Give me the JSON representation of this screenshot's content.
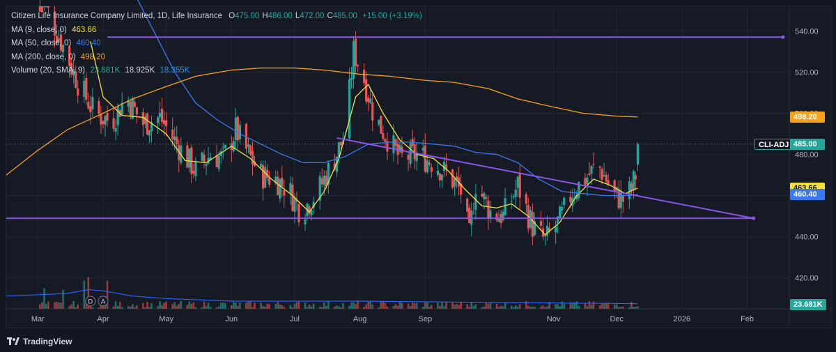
{
  "header": {
    "symbol_name": "Citizen Life Insurance Company Limited, 1D, Life Insurance",
    "ohlc": [
      {
        "key": "O",
        "value": "475.00"
      },
      {
        "key": "H",
        "value": "486.00"
      },
      {
        "key": "L",
        "value": "472.00"
      },
      {
        "key": "C",
        "value": "485.00"
      }
    ],
    "change": "+15.00 (+3.19%)"
  },
  "indicators": [
    {
      "label": "MA (9, close, 0)",
      "value": "463.66",
      "color": "#f5e13b"
    },
    {
      "label": "MA (50, close, 0)",
      "value": "460.40",
      "color": "#3a78f2"
    },
    {
      "label": "MA (200, close, 0)",
      "value": "498.20",
      "color": "#f7a21b"
    }
  ],
  "volume_indicator": {
    "label": "Volume (20, SMA, 9)",
    "values": [
      "23.681K",
      "18.925K",
      "18.355K"
    ],
    "colors": [
      "#26a69a",
      "#d1d4dc",
      "#2196f3"
    ]
  },
  "price_tags": [
    {
      "label": "CLI-ADJ",
      "value": "485.00",
      "price": 485,
      "color": "#26a69a"
    },
    {
      "label": "",
      "value": "498.20",
      "price": 498.2,
      "color": "#f7a21b"
    },
    {
      "label": "",
      "value": "463.66",
      "price": 463.66,
      "color": "#f5e13b"
    },
    {
      "label": "",
      "value": "460.40",
      "price": 460.4,
      "color": "#3a78f2"
    }
  ],
  "volume_tag": {
    "value": "23.681K",
    "color": "#26a69a"
  },
  "event_markers": [
    {
      "letter": "D",
      "date": "2025-03-26"
    },
    {
      "letter": "A",
      "date": "2025-04-01"
    }
  ],
  "branding": {
    "name": "TradingView"
  },
  "colors": {
    "up": "#26a69a",
    "down": "#ef5350",
    "trendline": "#8c54e6",
    "background": "#161a25"
  },
  "chart_data": {
    "type": "candlestick",
    "title": "Citizen Life Insurance Company Limited, 1D, Life Insurance",
    "xlabel": "",
    "ylabel": "",
    "ylim": [
      405,
      552
    ],
    "y_ticks": [
      420,
      440,
      460,
      480,
      500,
      520,
      540
    ],
    "y_tick_labels": [
      "420.00",
      "440.00",
      "460.00",
      "480.00",
      "500.00",
      "520.00",
      "540.00"
    ],
    "x_range": [
      "2025-02-14",
      "2026-02-21"
    ],
    "x_ticks": [
      {
        "label": "Mar",
        "date": "2025-03-01"
      },
      {
        "label": "Apr",
        "date": "2025-04-01"
      },
      {
        "label": "May",
        "date": "2025-05-01"
      },
      {
        "label": "Jun",
        "date": "2025-06-01"
      },
      {
        "label": "Jul",
        "date": "2025-07-01"
      },
      {
        "label": "Aug",
        "date": "2025-08-01"
      },
      {
        "label": "Sep",
        "date": "2025-09-01"
      },
      {
        "label": "Nov",
        "date": "2025-11-01"
      },
      {
        "label": "Dec",
        "date": "2025-12-01"
      },
      {
        "label": "2026",
        "date": "2026-01-01"
      },
      {
        "label": "Feb",
        "date": "2026-02-01"
      }
    ],
    "grid": true,
    "price_anchor_path": [
      [
        "2025-03-01",
        560
      ],
      [
        "2025-03-10",
        540
      ],
      [
        "2025-03-20",
        515
      ],
      [
        "2025-03-28",
        500
      ],
      [
        "2025-04-05",
        496
      ],
      [
        "2025-04-12",
        508
      ],
      [
        "2025-04-20",
        495
      ],
      [
        "2025-04-28",
        498
      ],
      [
        "2025-05-06",
        485
      ],
      [
        "2025-05-15",
        472
      ],
      [
        "2025-05-22",
        480
      ],
      [
        "2025-05-28",
        478
      ],
      [
        "2025-06-03",
        492
      ],
      [
        "2025-06-08",
        482
      ],
      [
        "2025-06-15",
        470
      ],
      [
        "2025-06-22",
        468
      ],
      [
        "2025-06-28",
        463
      ],
      [
        "2025-07-04",
        452
      ],
      [
        "2025-07-12",
        462
      ],
      [
        "2025-07-20",
        478
      ],
      [
        "2025-07-25",
        490
      ],
      [
        "2025-07-29",
        530
      ],
      [
        "2025-08-02",
        520
      ],
      [
        "2025-08-08",
        498
      ],
      [
        "2025-08-14",
        488
      ],
      [
        "2025-08-20",
        478
      ],
      [
        "2025-08-28",
        480
      ],
      [
        "2025-09-05",
        476
      ],
      [
        "2025-09-12",
        470
      ],
      [
        "2025-09-18",
        462
      ],
      [
        "2025-09-22",
        440
      ],
      [
        "2025-09-25",
        466
      ],
      [
        "2025-10-02",
        452
      ],
      [
        "2025-10-08",
        450
      ],
      [
        "2025-10-15",
        465
      ],
      [
        "2025-10-22",
        445
      ],
      [
        "2025-10-28",
        438
      ],
      [
        "2025-11-04",
        448
      ],
      [
        "2025-11-10",
        462
      ],
      [
        "2025-11-16",
        468
      ],
      [
        "2025-11-22",
        475
      ],
      [
        "2025-11-26",
        468
      ],
      [
        "2025-11-30",
        460
      ],
      [
        "2025-12-04",
        458
      ],
      [
        "2025-12-08",
        463
      ],
      [
        "2025-12-10",
        470
      ],
      [
        "2025-12-11",
        485
      ]
    ],
    "last_bar": {
      "open": 475.0,
      "high": 486.0,
      "low": 472.0,
      "close": 485.0
    },
    "moving_averages": [
      {
        "name": "MA (9, close, 0)",
        "color": "#f5e13b",
        "last": 463.66,
        "points": [
          [
            "2025-03-26",
            535
          ],
          [
            "2025-04-01",
            508
          ],
          [
            "2025-04-10",
            499
          ],
          [
            "2025-04-20",
            498
          ],
          [
            "2025-05-01",
            490
          ],
          [
            "2025-05-10",
            477
          ],
          [
            "2025-05-20",
            476
          ],
          [
            "2025-06-01",
            484
          ],
          [
            "2025-06-10",
            478
          ],
          [
            "2025-06-20",
            468
          ],
          [
            "2025-06-30",
            460
          ],
          [
            "2025-07-08",
            452
          ],
          [
            "2025-07-15",
            462
          ],
          [
            "2025-07-22",
            478
          ],
          [
            "2025-07-30",
            508
          ],
          [
            "2025-08-05",
            514
          ],
          [
            "2025-08-12",
            500
          ],
          [
            "2025-08-20",
            487
          ],
          [
            "2025-08-28",
            480
          ],
          [
            "2025-09-05",
            478
          ],
          [
            "2025-09-12",
            472
          ],
          [
            "2025-09-20",
            463
          ],
          [
            "2025-09-28",
            455
          ],
          [
            "2025-10-05",
            454
          ],
          [
            "2025-10-12",
            456
          ],
          [
            "2025-10-20",
            450
          ],
          [
            "2025-10-28",
            441
          ],
          [
            "2025-11-04",
            447
          ],
          [
            "2025-11-12",
            460
          ],
          [
            "2025-11-20",
            468
          ],
          [
            "2025-11-28",
            465
          ],
          [
            "2025-12-05",
            461
          ],
          [
            "2025-12-11",
            463.66
          ]
        ]
      },
      {
        "name": "MA (50, close, 0)",
        "color": "#3a78f2",
        "last": 460.4,
        "points": [
          [
            "2025-04-15",
            560
          ],
          [
            "2025-04-25",
            540
          ],
          [
            "2025-05-05",
            520
          ],
          [
            "2025-05-15",
            505
          ],
          [
            "2025-05-25",
            497
          ],
          [
            "2025-06-05",
            490
          ],
          [
            "2025-06-15",
            485
          ],
          [
            "2025-06-25",
            480
          ],
          [
            "2025-07-05",
            476
          ],
          [
            "2025-07-15",
            476
          ],
          [
            "2025-07-25",
            479
          ],
          [
            "2025-08-05",
            485
          ],
          [
            "2025-08-15",
            486
          ],
          [
            "2025-08-25",
            486
          ],
          [
            "2025-09-05",
            485
          ],
          [
            "2025-09-15",
            484
          ],
          [
            "2025-09-25",
            481
          ],
          [
            "2025-10-05",
            480
          ],
          [
            "2025-10-15",
            476
          ],
          [
            "2025-10-25",
            468
          ],
          [
            "2025-11-05",
            462
          ],
          [
            "2025-11-15",
            461
          ],
          [
            "2025-11-25",
            460
          ],
          [
            "2025-12-05",
            460
          ],
          [
            "2025-12-11",
            460.4
          ]
        ]
      },
      {
        "name": "MA (200, close, 0)",
        "color": "#f7a21b",
        "last": 498.2,
        "points": [
          [
            "2025-02-14",
            470
          ],
          [
            "2025-03-01",
            482
          ],
          [
            "2025-03-15",
            492
          ],
          [
            "2025-04-01",
            500
          ],
          [
            "2025-04-15",
            507
          ],
          [
            "2025-05-01",
            513
          ],
          [
            "2025-05-15",
            518
          ],
          [
            "2025-06-01",
            521
          ],
          [
            "2025-06-15",
            522
          ],
          [
            "2025-07-01",
            522
          ],
          [
            "2025-07-15",
            521
          ],
          [
            "2025-08-01",
            519
          ],
          [
            "2025-08-15",
            518
          ],
          [
            "2025-09-01",
            516
          ],
          [
            "2025-09-15",
            515
          ],
          [
            "2025-10-01",
            512
          ],
          [
            "2025-10-15",
            507
          ],
          [
            "2025-11-01",
            503
          ],
          [
            "2025-11-15",
            500
          ],
          [
            "2025-12-01",
            498.6
          ],
          [
            "2025-12-11",
            498.2
          ]
        ]
      }
    ],
    "drawings": [
      {
        "name": "resistance-line",
        "from": [
          "2025-04-03",
          537
        ],
        "to": [
          "2026-02-18",
          537
        ]
      },
      {
        "name": "support-line",
        "from": [
          "2025-02-14",
          449
        ],
        "to": [
          "2026-02-04",
          449
        ]
      },
      {
        "name": "descending-trendline",
        "from": [
          "2025-07-21",
          488
        ],
        "to": [
          "2026-02-04",
          449
        ]
      }
    ],
    "volume": {
      "last": "23.681K",
      "spikes": [
        [
          "2025-03-21",
          58
        ],
        [
          "2025-03-25",
          25
        ],
        [
          "2025-03-23",
          22
        ],
        [
          "2025-04-03",
          22
        ],
        [
          "2025-03-04",
          16
        ],
        [
          "2025-03-13",
          15
        ],
        [
          "2025-02-17",
          8
        ]
      ],
      "sma_points": [
        [
          "2025-02-14",
          10
        ],
        [
          "2025-03-01",
          11
        ],
        [
          "2025-03-15",
          12
        ],
        [
          "2025-03-25",
          15
        ],
        [
          "2025-04-01",
          14
        ],
        [
          "2025-04-15",
          10
        ],
        [
          "2025-05-01",
          8
        ],
        [
          "2025-06-01",
          6
        ],
        [
          "2025-08-01",
          6
        ],
        [
          "2025-10-01",
          5
        ],
        [
          "2025-12-11",
          4
        ]
      ]
    }
  }
}
